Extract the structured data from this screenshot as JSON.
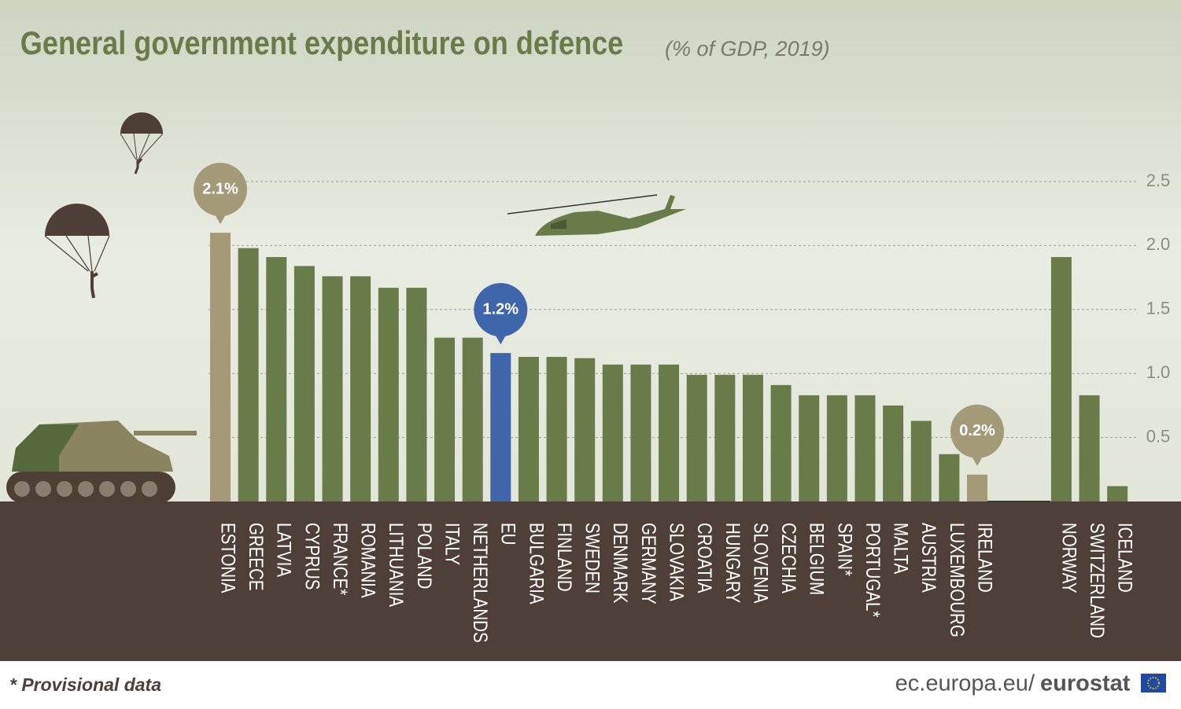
{
  "chart_data": {
    "type": "bar",
    "title": "General government expenditure on defence",
    "subtitle": "(% of GDP, 2019)",
    "categories": [
      "ESTONIA",
      "GREECE",
      "LATVIA",
      "CYPRUS",
      "FRANCE*",
      "ROMANIA",
      "LITHUANIA",
      "POLAND",
      "ITALY",
      "NETHERLANDS",
      "EU",
      "BULGARIA",
      "FINLAND",
      "SWEDEN",
      "DENMARK",
      "GERMANY",
      "SLOVAKIA",
      "CROATIA",
      "HUNGARY",
      "SLOVENIA",
      "CZECHIA",
      "BELGIUM",
      "SPAIN*",
      "PORTUGAL*",
      "MALTA",
      "AUSTRIA",
      "LUXEMBOURG",
      "IRELAND",
      "NORWAY",
      "SWITZERLAND",
      "ICELAND"
    ],
    "values": [
      2.1,
      1.98,
      1.91,
      1.84,
      1.76,
      1.76,
      1.67,
      1.67,
      1.28,
      1.28,
      1.16,
      1.13,
      1.13,
      1.12,
      1.07,
      1.07,
      1.07,
      0.99,
      0.99,
      0.99,
      0.91,
      0.83,
      0.83,
      0.83,
      0.75,
      0.63,
      0.37,
      0.21,
      1.91,
      0.83,
      0.12
    ],
    "value_labels": [
      "2.1%",
      null,
      null,
      null,
      null,
      null,
      null,
      null,
      null,
      null,
      "1.2%",
      null,
      null,
      null,
      null,
      null,
      null,
      null,
      null,
      null,
      null,
      null,
      null,
      null,
      null,
      null,
      null,
      "0.2%",
      null,
      null,
      null
    ],
    "colors": [
      "#a39a78",
      "#6a7b4a",
      "#6a7b4a",
      "#6a7b4a",
      "#6a7b4a",
      "#6a7b4a",
      "#6a7b4a",
      "#6a7b4a",
      "#6a7b4a",
      "#6a7b4a",
      "#3f66ab",
      "#6a7b4a",
      "#6a7b4a",
      "#6a7b4a",
      "#6a7b4a",
      "#6a7b4a",
      "#6a7b4a",
      "#6a7b4a",
      "#6a7b4a",
      "#6a7b4a",
      "#6a7b4a",
      "#6a7b4a",
      "#6a7b4a",
      "#6a7b4a",
      "#6a7b4a",
      "#6a7b4a",
      "#6a7b4a",
      "#a39a78",
      "#6a7b4a",
      "#6a7b4a",
      "#6a7b4a"
    ],
    "ylim": [
      0,
      2.5
    ],
    "yticks": [
      0.5,
      {
        "value": 1,
        "label": "1.0"
      },
      1.5,
      {
        "value": 2,
        "label": "2.0"
      },
      2.5
    ],
    "grid": true
  },
  "footnote": "* Provisional data",
  "source": {
    "site": "ec.europa.eu/",
    "brand": "eurostat"
  }
}
